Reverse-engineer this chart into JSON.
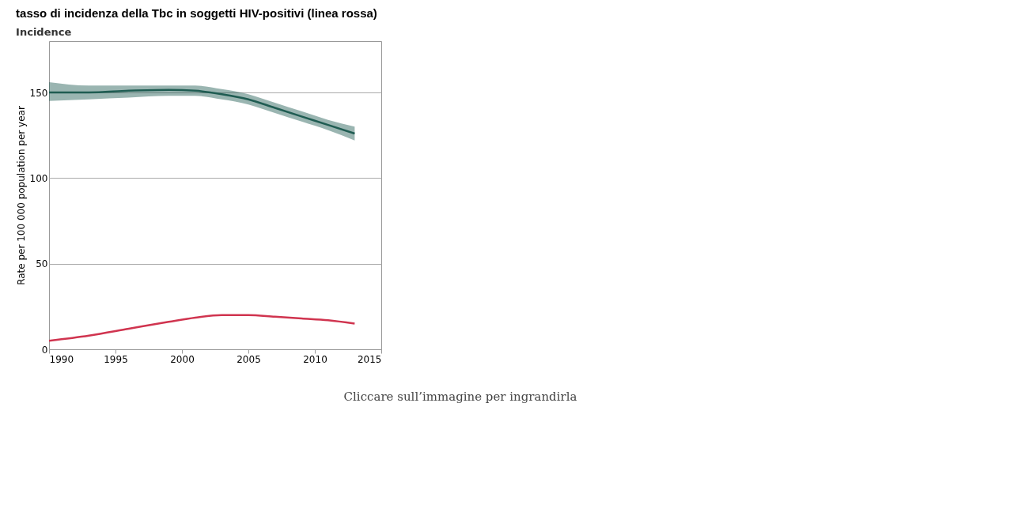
{
  "chart_data": {
    "type": "line",
    "title": "tasso di incidenza della Tbc in soggetti HIV-positivi (linea rossa)",
    "subtitle": "Incidence",
    "ylabel": "Rate per 100 000 population per year",
    "x": [
      1990,
      1993,
      1996,
      1999,
      2001,
      2003,
      2005,
      2007,
      2009,
      2011,
      2013
    ],
    "series": [
      {
        "color": "#1f5c52",
        "values": [
          150,
          150,
          151,
          151.5,
          151,
          149,
          146,
          141,
          136,
          131,
          126
        ],
        "lower": [
          145,
          146,
          147,
          148,
          148,
          146,
          143,
          138,
          133,
          128,
          122
        ],
        "upper": [
          156,
          154,
          154,
          154,
          154,
          152,
          149,
          144,
          139,
          134,
          130
        ]
      },
      {
        "color": "#d0344f",
        "values": [
          5,
          8,
          12,
          16,
          18.5,
          20,
          20,
          19,
          18,
          17,
          15
        ]
      }
    ],
    "xlim": [
      1990,
      2015
    ],
    "xticks": [
      1990,
      1995,
      2000,
      2005,
      2010,
      2015
    ],
    "ylim": [
      0,
      180
    ],
    "yticks": [
      0,
      50,
      100,
      150
    ],
    "grid": "y",
    "marker": "none",
    "line_style": "solid",
    "legend": false,
    "annotations": [
      "Cliccare sull’immagine per ingrandirla"
    ]
  }
}
